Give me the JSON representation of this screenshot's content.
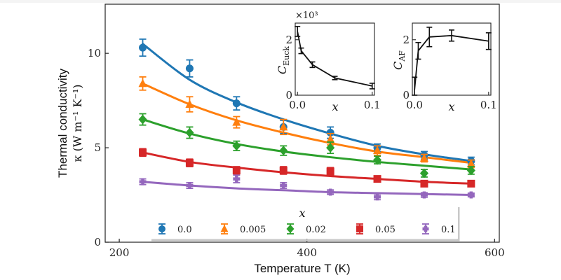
{
  "chart_data": [
    {
      "type": "line",
      "title": "",
      "xlabel": "Temperature T (K)",
      "ylabel_line1": "Thermal conductivity",
      "ylabel_line2": "κ (W m⁻¹ K⁻¹)",
      "xlim": [
        185,
        605
      ],
      "ylim": [
        0,
        12.6
      ],
      "xticks": [
        200,
        400,
        600
      ],
      "xtick_labels": [
        "200",
        "400",
        "600"
      ],
      "yticks": [
        0,
        5,
        10
      ],
      "ytick_labels": [
        "0",
        "5",
        "10"
      ],
      "grid": false,
      "legend": {
        "title": "x",
        "placement": "bottom-center",
        "ncol": 5
      },
      "x": [
        225,
        275,
        325,
        375,
        425,
        475,
        525,
        575
      ],
      "series": [
        {
          "name": "0.0",
          "color": "#1f77b4",
          "marker": "circle",
          "values": [
            10.3,
            9.2,
            7.35,
            6.1,
            5.8,
            5.0,
            4.6,
            4.3
          ],
          "errors": [
            0.45,
            0.45,
            0.35,
            0.35,
            0.3,
            0.2,
            0.2,
            0.2
          ],
          "fit": [
            10.5,
            8.6,
            7.4,
            6.5,
            5.75,
            5.1,
            4.65,
            4.3
          ]
        },
        {
          "name": "0.005",
          "color": "#ff7f0e",
          "marker": "triangle",
          "values": [
            8.4,
            7.3,
            6.35,
            6.1,
            5.45,
            4.85,
            4.45,
            4.15
          ],
          "errors": [
            0.35,
            0.4,
            0.3,
            0.4,
            0.3,
            0.25,
            0.2,
            0.2
          ],
          "fit": [
            8.4,
            7.3,
            6.45,
            5.8,
            5.25,
            4.8,
            4.5,
            4.2
          ]
        },
        {
          "name": "0.02",
          "color": "#2ca02c",
          "marker": "diamond",
          "values": [
            6.5,
            5.8,
            5.1,
            4.85,
            5.0,
            4.35,
            3.65,
            3.8
          ],
          "errors": [
            0.3,
            0.3,
            0.25,
            0.25,
            0.3,
            0.2,
            0.2,
            0.2
          ],
          "fit": [
            6.5,
            5.75,
            5.2,
            4.8,
            4.5,
            4.25,
            4.05,
            3.85
          ]
        },
        {
          "name": "0.05",
          "color": "#d62728",
          "marker": "square",
          "values": [
            4.75,
            4.2,
            3.8,
            3.8,
            3.75,
            3.35,
            3.1,
            3.1
          ],
          "errors": [
            0.2,
            0.2,
            0.2,
            0.2,
            0.2,
            0.15,
            0.15,
            0.15
          ],
          "fit": [
            4.75,
            4.25,
            3.95,
            3.7,
            3.5,
            3.35,
            3.2,
            3.1
          ]
        },
        {
          "name": "0.1",
          "color": "#9467bd",
          "marker": "plus",
          "values": [
            3.2,
            3.0,
            3.35,
            3.0,
            2.65,
            2.4,
            2.5,
            2.5
          ],
          "errors": [
            0.15,
            0.15,
            0.2,
            0.15,
            0.12,
            0.15,
            0.12,
            0.1
          ],
          "fit": [
            3.2,
            3.0,
            2.85,
            2.75,
            2.65,
            2.6,
            2.55,
            2.5
          ]
        }
      ]
    },
    {
      "type": "line",
      "title": "",
      "xlabel": "x",
      "ylabel": "C_Euck",
      "ylabel_main": "C",
      "ylabel_sub": "Euck",
      "scale_label": "×10³",
      "xlim": [
        -0.003,
        0.103
      ],
      "ylim": [
        0,
        2.6
      ],
      "xticks": [
        0.0,
        0.1
      ],
      "xtick_labels": [
        "0.0",
        "0.1"
      ],
      "yticks": [
        0,
        2
      ],
      "ytick_labels": [
        "0",
        "2"
      ],
      "x": [
        0.0,
        0.005,
        0.02,
        0.05,
        0.1
      ],
      "values": [
        2.3,
        1.6,
        1.1,
        0.62,
        0.33
      ],
      "errors": [
        0.18,
        0.1,
        0.1,
        0.06,
        0.1
      ]
    },
    {
      "type": "line",
      "title": "",
      "xlabel": "x",
      "ylabel": "C_AF",
      "ylabel_main": "C",
      "ylabel_sub": "AF",
      "xlim": [
        -0.003,
        0.103
      ],
      "ylim": [
        0,
        2.6
      ],
      "xticks": [
        0.0,
        0.1
      ],
      "xtick_labels": [
        "0.0",
        "0.1"
      ],
      "yticks": [
        0,
        2
      ],
      "ytick_labels": [
        "0",
        "2"
      ],
      "x": [
        0.0,
        0.005,
        0.02,
        0.05,
        0.1
      ],
      "values": [
        0.2,
        1.6,
        2.1,
        2.15,
        1.95
      ],
      "errors": [
        0.45,
        0.3,
        0.35,
        0.2,
        0.3
      ]
    }
  ]
}
